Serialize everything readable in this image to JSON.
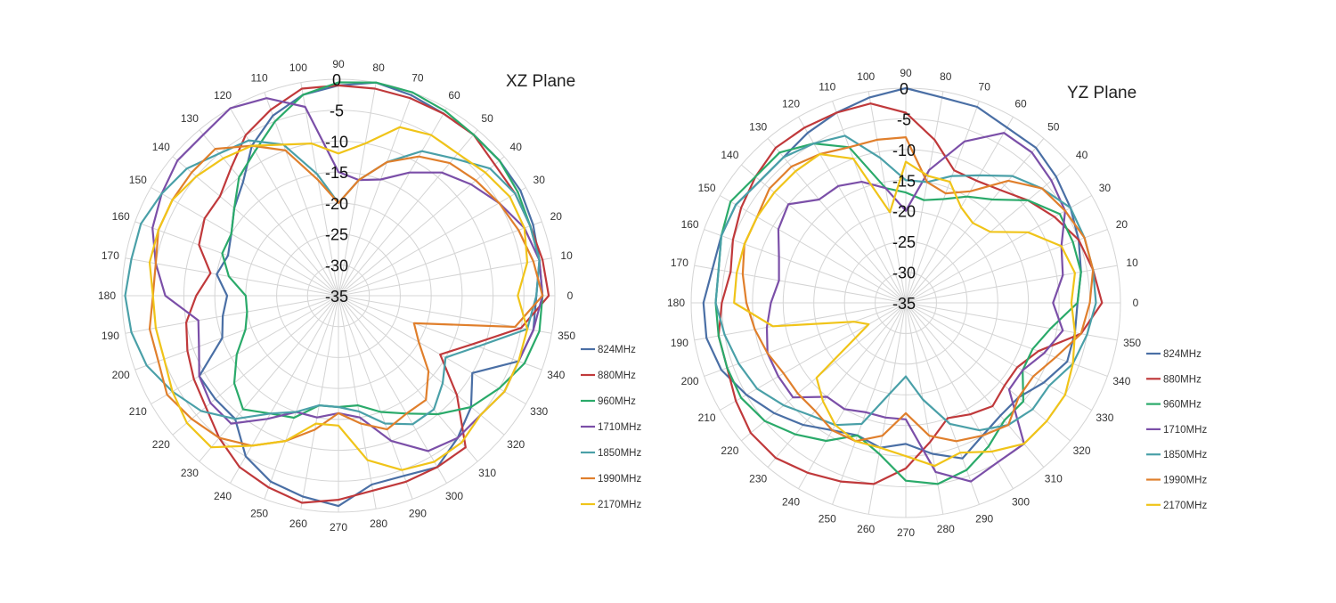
{
  "chart_data": [
    {
      "type": "polar-line",
      "title": "XZ Plane",
      "rlim": [
        -35,
        0
      ],
      "r_ticks": [
        0,
        -5,
        -10,
        -15,
        -20,
        -25,
        -30,
        -35
      ],
      "angle_ticks": [
        0,
        10,
        20,
        30,
        40,
        50,
        60,
        70,
        80,
        90,
        100,
        110,
        120,
        130,
        140,
        150,
        160,
        170,
        180,
        190,
        200,
        210,
        220,
        230,
        240,
        250,
        260,
        270,
        280,
        290,
        300,
        310,
        320,
        330,
        340,
        350
      ],
      "angles_deg": [
        0,
        10,
        20,
        30,
        40,
        50,
        60,
        70,
        80,
        90,
        100,
        110,
        120,
        130,
        140,
        150,
        160,
        170,
        180,
        190,
        200,
        210,
        220,
        230,
        240,
        250,
        260,
        270,
        280,
        290,
        300,
        310,
        320,
        330,
        340,
        350
      ],
      "legend_position": "right",
      "series": [
        {
          "name": "824MHz",
          "color": "#4a6fa5",
          "values": [
            -3,
            -2,
            -1.5,
            -1,
            -1,
            -1,
            -1,
            -0.5,
            0,
            -1,
            -2,
            -4,
            -7,
            -11,
            -13,
            -15,
            -16,
            -15,
            -17,
            -16,
            -15,
            -9,
            -9,
            -9,
            -5,
            -3,
            -2,
            -1,
            -4,
            -4,
            -3,
            -5,
            -7,
            -10,
            -4,
            -3
          ]
        },
        {
          "name": "880MHz",
          "color": "#c0393b",
          "values": [
            -1,
            -1.5,
            -2,
            -2,
            -2,
            -1,
            -1,
            -1,
            -1,
            -1,
            -1,
            -3,
            -5,
            -8,
            -10,
            -10,
            -11,
            -14,
            -12,
            -10,
            -9,
            -8,
            -7,
            -5,
            -3,
            -2,
            -1,
            -2,
            -3,
            -3,
            -3,
            -3,
            -10,
            -16,
            -12,
            -5
          ]
        },
        {
          "name": "960MHz",
          "color": "#2aaa6a",
          "values": [
            -2,
            -2,
            -2,
            -1.5,
            -1,
            -1,
            -0.5,
            0,
            0,
            -0.5,
            -2,
            -5,
            -8,
            -10,
            -13,
            -15,
            -15,
            -17,
            -20,
            -20,
            -19,
            -16,
            -13,
            -11,
            -13,
            -14,
            -17,
            -17,
            -17,
            -15,
            -13,
            -10,
            -7,
            -5,
            -3,
            -2
          ]
        },
        {
          "name": "1710MHz",
          "color": "#7b4fa8",
          "values": [
            -2,
            -2,
            -3,
            -5,
            -7,
            -9,
            -12,
            -15,
            -16,
            -15,
            -4,
            -1,
            0,
            -1,
            -1,
            -2,
            -3,
            -5,
            -7,
            -12,
            -11,
            -9,
            -8,
            -8,
            -12,
            -15,
            -15,
            -16,
            -15,
            -10,
            -6,
            -5,
            -5,
            -4,
            -4,
            -3
          ]
        },
        {
          "name": "1850MHz",
          "color": "#4aa0a8",
          "values": [
            -3,
            -2,
            -2,
            -2,
            -3,
            -6,
            -8,
            -12,
            -16,
            -20,
            -15,
            -9,
            -6,
            -5,
            -3,
            -2,
            -1,
            -1,
            -0.5,
            -1,
            -2,
            -4,
            -6,
            -9,
            -13,
            -15,
            -17,
            -17,
            -16,
            -13,
            -11,
            -11,
            -13,
            -15,
            -11,
            -4
          ]
        },
        {
          "name": "1990MHz",
          "color": "#e07f2c",
          "values": [
            -2,
            -3,
            -4,
            -5,
            -6,
            -7,
            -9,
            -12,
            -16,
            -20,
            -16,
            -10,
            -7,
            -4,
            -4,
            -4,
            -4,
            -5,
            -5,
            -4,
            -4,
            -3,
            -4,
            -5,
            -7,
            -10,
            -13,
            -16,
            -14,
            -12,
            -13,
            -13,
            -16,
            -20,
            -22,
            -6
          ]
        },
        {
          "name": "2170MHz",
          "color": "#f0c419",
          "values": [
            -6,
            -4,
            -3,
            -3,
            -4,
            -5,
            -5,
            -6,
            -10,
            -12,
            -10,
            -9,
            -7,
            -6,
            -5,
            -4,
            -4,
            -4,
            -5,
            -5,
            -5,
            -4,
            -3,
            -3,
            -7,
            -10,
            -14,
            -14,
            -8,
            -5,
            -4,
            -4,
            -5,
            -4,
            -4,
            -4
          ]
        }
      ]
    },
    {
      "type": "polar-line",
      "title": "YZ Plane",
      "rlim": [
        -35,
        0
      ],
      "r_ticks": [
        0,
        -5,
        -10,
        -15,
        -20,
        -25,
        -30,
        -35
      ],
      "angle_ticks": [
        0,
        10,
        20,
        30,
        40,
        50,
        60,
        70,
        80,
        90,
        100,
        110,
        120,
        130,
        140,
        150,
        160,
        170,
        180,
        190,
        200,
        210,
        220,
        230,
        240,
        250,
        260,
        270,
        280,
        290,
        300,
        310,
        320,
        330,
        340,
        350
      ],
      "angles_deg": [
        0,
        10,
        20,
        30,
        40,
        50,
        60,
        70,
        80,
        90,
        100,
        110,
        120,
        130,
        140,
        150,
        160,
        170,
        180,
        190,
        200,
        210,
        220,
        230,
        240,
        250,
        260,
        270,
        280,
        290,
        300,
        310,
        320,
        330,
        340,
        350
      ],
      "legend_position": "right",
      "series": [
        {
          "name": "824MHz",
          "color": "#4a6fa5",
          "values": [
            -7,
            -6,
            -5,
            -4,
            -3,
            -2,
            -2,
            -1,
            -1,
            0,
            -1,
            -2,
            -3,
            -4,
            -4,
            -3,
            -3,
            -3,
            -2,
            -2,
            -3,
            -5,
            -7,
            -9,
            -11,
            -12,
            -11,
            -12,
            -10,
            -8,
            -10,
            -11,
            -11,
            -9,
            -7,
            -7
          ]
        },
        {
          "name": "880MHz",
          "color": "#c0393b",
          "values": [
            -3,
            -4,
            -5,
            -7,
            -9,
            -11,
            -12,
            -12,
            -8,
            -4,
            -2,
            -2,
            -2,
            -2,
            -3,
            -4,
            -5,
            -6,
            -5,
            -4,
            -4,
            -3,
            -2,
            -2,
            -3,
            -4,
            -5,
            -8,
            -12,
            -15,
            -14,
            -13,
            -14,
            -14,
            -12,
            -6
          ]
        },
        {
          "name": "960MHz",
          "color": "#2aaa6a",
          "values": [
            -7,
            -6,
            -6,
            -6,
            -9,
            -13,
            -15,
            -17,
            -18,
            -17,
            -16,
            -8,
            -5,
            -3,
            -3,
            -2,
            -3,
            -4,
            -4,
            -4,
            -4,
            -4,
            -5,
            -7,
            -9,
            -12,
            -10,
            -6,
            -5,
            -6,
            -8,
            -10,
            -10,
            -13,
            -13,
            -11
          ]
        },
        {
          "name": "1710MHz",
          "color": "#7b4fa8",
          "values": [
            -11,
            -9,
            -8,
            -5,
            -4,
            -3,
            -3,
            -7,
            -13,
            -20,
            -16,
            -14,
            -13,
            -13,
            -10,
            -11,
            -13,
            -14,
            -13,
            -12,
            -11,
            -11,
            -11,
            -15,
            -15,
            -16,
            -16,
            -16,
            -7,
            -4,
            -5,
            -5,
            -13,
            -13,
            -11,
            -9
          ]
        },
        {
          "name": "1850MHz",
          "color": "#4aa0a8",
          "values": [
            -4,
            -4,
            -4,
            -4,
            -6,
            -8,
            -11,
            -13,
            -15,
            -15,
            -11,
            -6,
            -5,
            -4,
            -4,
            -3,
            -3,
            -4,
            -4,
            -5,
            -6,
            -7,
            -9,
            -11,
            -12,
            -14,
            -20,
            -23,
            -19,
            -14,
            -11,
            -9,
            -8,
            -8,
            -6,
            -5
          ]
        },
        {
          "name": "1990MHz",
          "color": "#e07f2c",
          "values": [
            -5,
            -4,
            -4,
            -5,
            -6,
            -9,
            -14,
            -16,
            -15,
            -8,
            -8,
            -8,
            -7,
            -6,
            -6,
            -7,
            -7,
            -8,
            -9,
            -10,
            -11,
            -12,
            -12,
            -12,
            -11,
            -11,
            -13,
            -17,
            -13,
            -11,
            -10,
            -9,
            -11,
            -11,
            -9,
            -6
          ]
        },
        {
          "name": "2170MHz",
          "color": "#f0c419",
          "values": [
            -8,
            -7,
            -8,
            -12,
            -17,
            -18,
            -17,
            -14,
            -14,
            -12,
            -20,
            -10,
            -7,
            -7,
            -7,
            -7,
            -7,
            -7,
            -7,
            -13,
            -26,
            -28,
            -16,
            -14,
            -12,
            -11,
            -11,
            -10,
            -8,
            -9,
            -7,
            -5,
            -5,
            -5,
            -6,
            -7
          ]
        }
      ]
    }
  ]
}
